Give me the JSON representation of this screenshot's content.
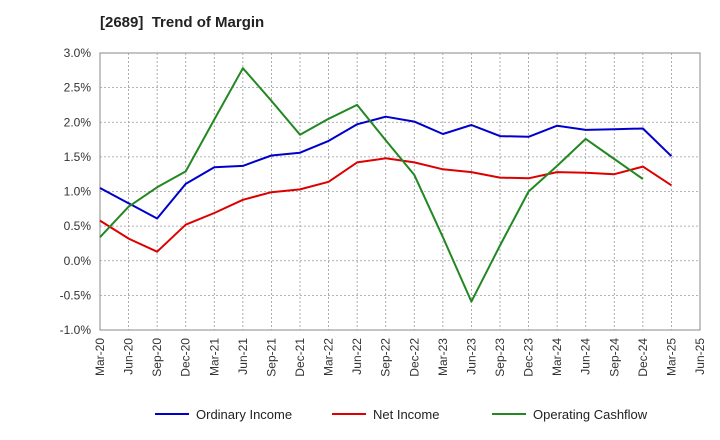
{
  "chart_data": {
    "type": "line",
    "title": "[2689]  Trend of Margin",
    "categories": [
      "Mar-20",
      "Jun-20",
      "Sep-20",
      "Dec-20",
      "Mar-21",
      "Jun-21",
      "Sep-21",
      "Dec-21",
      "Mar-22",
      "Jun-22",
      "Sep-22",
      "Dec-22",
      "Mar-23",
      "Jun-23",
      "Sep-23",
      "Dec-23",
      "Mar-24",
      "Jun-24",
      "Sep-24",
      "Dec-24",
      "Mar-25",
      "Jun-25"
    ],
    "ylim": [
      -1.0,
      3.0
    ],
    "yticks": [
      "3.0%",
      "2.5%",
      "2.0%",
      "1.5%",
      "1.0%",
      "0.5%",
      "0.0%",
      "-0.5%",
      "-1.0%"
    ],
    "grid": true,
    "legend_position": "bottom",
    "series": [
      {
        "name": "Ordinary Income",
        "color": "#0000cc",
        "values": [
          1.05,
          0.83,
          0.61,
          1.11,
          1.35,
          1.37,
          1.52,
          1.56,
          1.73,
          1.97,
          2.08,
          2.01,
          1.83,
          1.96,
          1.8,
          1.79,
          1.95,
          1.89,
          1.9,
          1.91,
          1.51,
          null
        ]
      },
      {
        "name": "Net Income",
        "color": "#dd0000",
        "values": [
          0.58,
          0.32,
          0.13,
          0.52,
          0.69,
          0.88,
          0.99,
          1.03,
          1.14,
          1.42,
          1.48,
          1.42,
          1.32,
          1.28,
          1.2,
          1.19,
          1.28,
          1.27,
          1.25,
          1.36,
          1.09,
          null
        ]
      },
      {
        "name": "Operating Cashflow",
        "color": "#228822",
        "values": [
          0.34,
          0.78,
          1.06,
          1.29,
          2.04,
          2.78,
          2.31,
          1.82,
          2.05,
          2.25,
          1.74,
          1.24,
          0.34,
          -0.59,
          0.22,
          1.0,
          1.37,
          1.76,
          1.47,
          1.18,
          null,
          null
        ]
      }
    ]
  }
}
